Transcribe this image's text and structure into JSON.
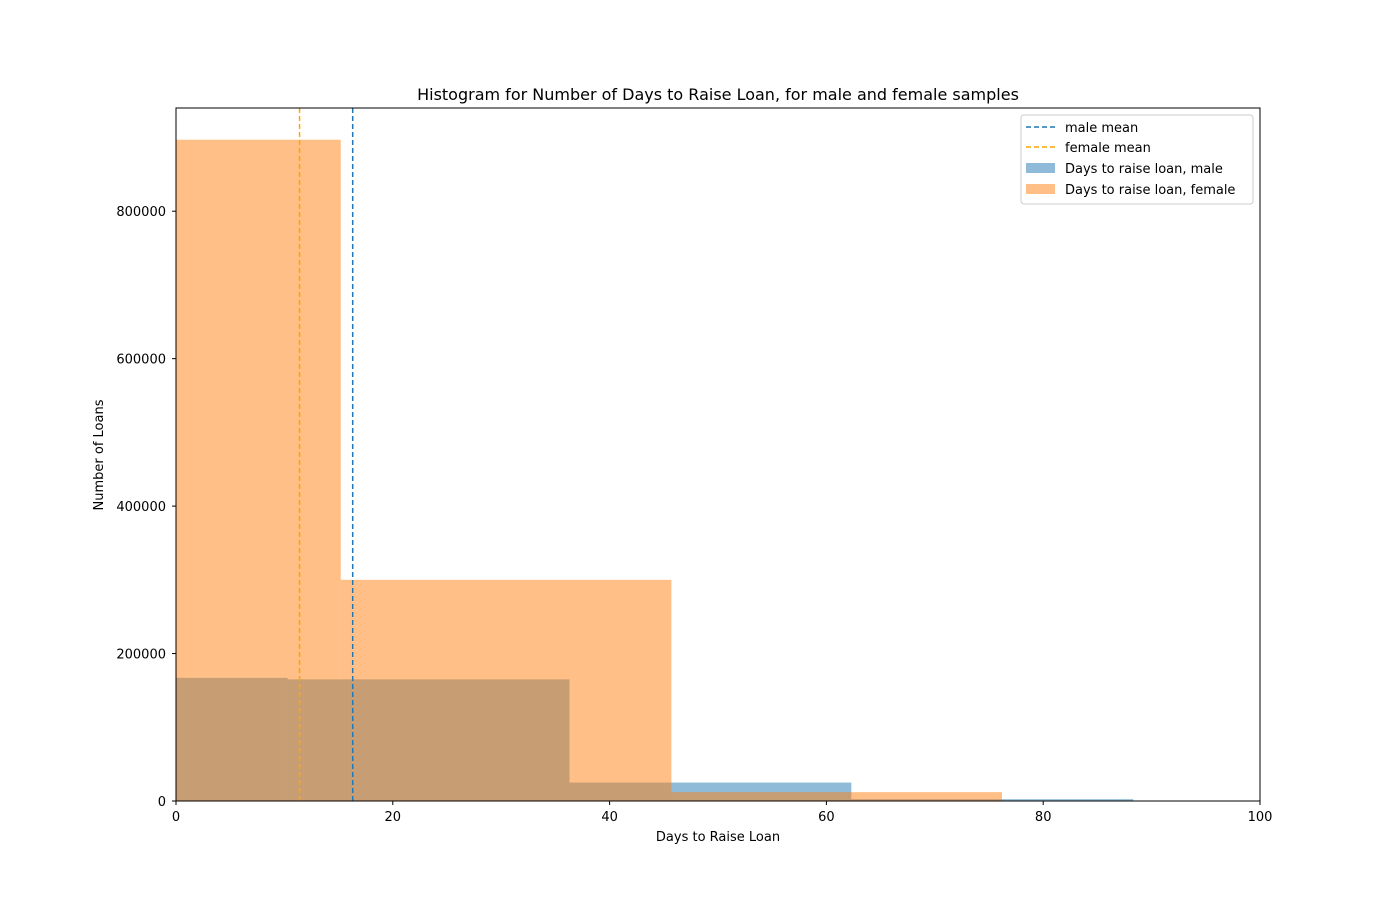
{
  "chart_data": {
    "type": "bar",
    "title": "Histogram for Number of Days to Raise Loan, for male and female samples",
    "xlabel": "Days to Raise Loan",
    "ylabel": "Number of Loans",
    "xlim": [
      0,
      100
    ],
    "ylim": [
      0,
      940000
    ],
    "xticks": [
      "0",
      "20",
      "40",
      "60",
      "80",
      "100"
    ],
    "yticks": [
      "0",
      "200000",
      "400000",
      "600000",
      "800000"
    ],
    "grid": false,
    "legend_position": "top-right",
    "series": [
      {
        "name": "Days to raise loan, male",
        "color": "#1f77b4",
        "opacity": 0.5,
        "bins": [
          {
            "x0": 0,
            "x1": 10.3,
            "value": 167000
          },
          {
            "x0": 10.3,
            "x1": 36.3,
            "value": 165000
          },
          {
            "x0": 36.3,
            "x1": 62.3,
            "value": 25000
          },
          {
            "x0": 62.3,
            "x1": 88.3,
            "value": 2500
          },
          {
            "x0": 88.3,
            "x1": 114.3,
            "value": 500
          }
        ]
      },
      {
        "name": "Days to raise loan, female",
        "color": "#ff7f0e",
        "opacity": 0.5,
        "bins": [
          {
            "x0": 0,
            "x1": 15.2,
            "value": 897000
          },
          {
            "x0": 15.2,
            "x1": 45.7,
            "value": 300000
          },
          {
            "x0": 45.7,
            "x1": 76.2,
            "value": 12000
          },
          {
            "x0": 76.2,
            "x1": 106.7,
            "value": 600
          }
        ]
      }
    ],
    "mean_lines": [
      {
        "name": "male mean",
        "x": 16.3,
        "color": "#1f77b4"
      },
      {
        "name": "female mean",
        "x": 11.4,
        "color": "#ffa500"
      }
    ]
  }
}
